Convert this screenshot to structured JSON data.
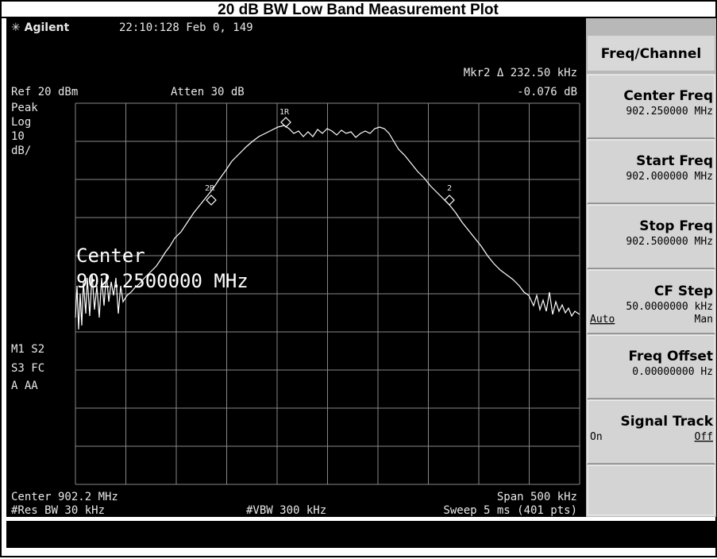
{
  "header": {
    "title": "20 dB BW Low Band Measurement Plot"
  },
  "screen": {
    "brand": "Agilent",
    "datetime": "22:10:128  Feb 0, 149",
    "marker_readout": "Mkr2 Δ  232.50 kHz",
    "marker_delta": "-0.076 dB",
    "ref_level": "Ref 20 dBm",
    "attenuation": "Atten 30 dB",
    "left_annotations": [
      "Peak",
      "Log",
      "10",
      "dB/"
    ],
    "status_annotations": [
      "M1 S2",
      "S3 FC",
      "A  AA"
    ],
    "overlay": [
      "Center",
      "902.2500000 MHz"
    ],
    "markers": [
      "1R",
      "2R",
      "2"
    ],
    "footer": {
      "center": "Center 902.2 MHz",
      "span": "Span 500 kHz",
      "res_bw": "#Res BW 30 kHz",
      "vbw": "#VBW 300 kHz",
      "sweep": "Sweep 5 ms (401 pts)"
    }
  },
  "softkeys": {
    "title": "Freq/Channel",
    "keys": [
      {
        "label": "Center Freq",
        "value": "902.250000 MHz"
      },
      {
        "label": "Start Freq",
        "value": "902.000000 MHz"
      },
      {
        "label": "Stop Freq",
        "value": "902.500000 MHz"
      },
      {
        "label": "CF Step",
        "value": "50.0000000 kHz",
        "options": [
          "Auto",
          "Man"
        ]
      },
      {
        "label": "Freq Offset",
        "value": "0.00000000  Hz"
      },
      {
        "label": "Signal Track",
        "options": [
          "On",
          "Off"
        ]
      }
    ]
  }
}
